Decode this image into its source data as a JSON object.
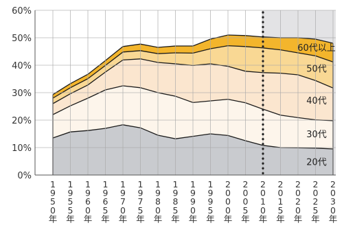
{
  "chart_data": {
    "type": "area",
    "stacked": true,
    "x": [
      "1950年",
      "1955年",
      "1960年",
      "1965年",
      "1970年",
      "1975年",
      "1980年",
      "1985年",
      "1990年",
      "1995年",
      "2000年",
      "2005年",
      "2010年",
      "2015年",
      "2020年",
      "2025年",
      "2030年"
    ],
    "ylim": [
      0,
      60
    ],
    "y_ticks": [
      "0%",
      "10%",
      "20%",
      "30%",
      "40%",
      "50%",
      "60%"
    ],
    "grid": true,
    "forecast_from": "2010年",
    "series": [
      {
        "name": "20代",
        "color": "#c9cbcf",
        "values": [
          13.5,
          15.7,
          16.2,
          17.0,
          18.3,
          17.2,
          14.5,
          13.2,
          14.1,
          15.0,
          14.4,
          12.5,
          10.8,
          10.0,
          9.9,
          9.8,
          9.5
        ]
      },
      {
        "name": "30代",
        "color": "#fdf5eb",
        "values": [
          8.5,
          9.5,
          11.8,
          14.0,
          14.2,
          14.6,
          15.5,
          15.5,
          12.3,
          12.0,
          13.2,
          13.8,
          13.2,
          11.8,
          11.0,
          10.3,
          10.3
        ]
      },
      {
        "name": "40代",
        "color": "#fbe6cf",
        "values": [
          4.0,
          4.4,
          4.8,
          6.5,
          9.4,
          10.5,
          11.0,
          11.8,
          13.5,
          13.5,
          12.0,
          11.5,
          13.3,
          15.3,
          15.6,
          14.3,
          11.9
        ]
      },
      {
        "name": "50代",
        "color": "#f9d894",
        "values": [
          2.0,
          2.2,
          2.3,
          2.4,
          2.9,
          3.0,
          3.2,
          4.0,
          4.5,
          5.5,
          7.5,
          9.0,
          9.0,
          8.5,
          8.0,
          9.0,
          9.5
        ]
      },
      {
        "name": "60代以上",
        "color": "#f3b52c",
        "values": [
          1.3,
          1.5,
          1.6,
          1.8,
          2.0,
          2.4,
          2.3,
          2.5,
          2.6,
          3.5,
          3.9,
          4.0,
          4.0,
          4.4,
          5.5,
          6.1,
          6.8
        ]
      }
    ]
  }
}
